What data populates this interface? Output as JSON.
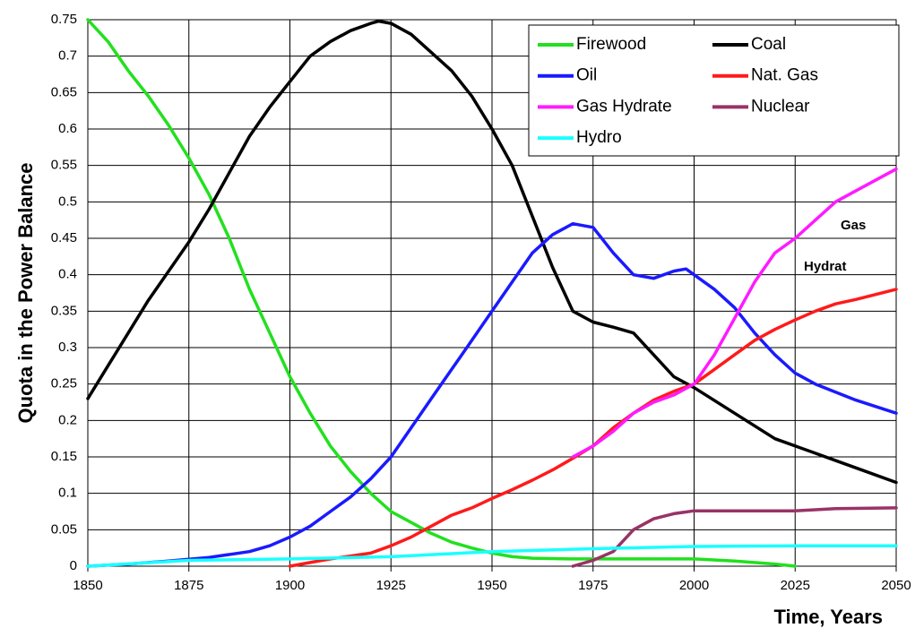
{
  "chart_data": {
    "type": "line",
    "xlabel": "Time, Years",
    "ylabel": "Quota in the Power Balance",
    "xlim": [
      1850,
      2050
    ],
    "xticks": [
      1850,
      1875,
      1900,
      1925,
      1950,
      1975,
      2000,
      2025,
      2050
    ],
    "ylim": [
      0,
      0.75
    ],
    "yticks": [
      0,
      0.05,
      0.1,
      0.15,
      0.2,
      0.25,
      0.3,
      0.35,
      0.4,
      0.45,
      0.5,
      0.55,
      0.6,
      0.65,
      0.7,
      0.75
    ],
    "grid": true,
    "legend": "upper right",
    "annotations": [
      "Gas",
      "Hydrat"
    ],
    "series": [
      {
        "name": "Firewood",
        "color": "#22e01e",
        "x": [
          1850,
          1855,
          1860,
          1865,
          1870,
          1875,
          1880,
          1885,
          1890,
          1895,
          1900,
          1905,
          1910,
          1915,
          1920,
          1925,
          1930,
          1935,
          1940,
          1945,
          1950,
          1955,
          1960,
          1970,
          1980,
          1990,
          2000,
          2010,
          2020,
          2025
        ],
        "values": [
          0.75,
          0.72,
          0.68,
          0.645,
          0.605,
          0.56,
          0.51,
          0.45,
          0.38,
          0.32,
          0.26,
          0.21,
          0.165,
          0.13,
          0.1,
          0.075,
          0.06,
          0.045,
          0.033,
          0.025,
          0.018,
          0.013,
          0.011,
          0.01,
          0.01,
          0.01,
          0.01,
          0.007,
          0.003,
          0
        ]
      },
      {
        "name": "Coal",
        "color": "#000000",
        "x": [
          1850,
          1855,
          1860,
          1865,
          1870,
          1875,
          1880,
          1885,
          1890,
          1895,
          1900,
          1905,
          1910,
          1915,
          1920,
          1922,
          1925,
          1930,
          1935,
          1940,
          1945,
          1950,
          1955,
          1960,
          1965,
          1970,
          1975,
          1980,
          1985,
          1990,
          1995,
          2000,
          2010,
          2020,
          2030,
          2040,
          2050
        ],
        "values": [
          0.23,
          0.275,
          0.32,
          0.365,
          0.405,
          0.445,
          0.49,
          0.54,
          0.59,
          0.63,
          0.665,
          0.7,
          0.72,
          0.735,
          0.745,
          0.748,
          0.745,
          0.73,
          0.705,
          0.68,
          0.645,
          0.6,
          0.55,
          0.48,
          0.41,
          0.35,
          0.335,
          0.328,
          0.32,
          0.29,
          0.26,
          0.245,
          0.21,
          0.175,
          0.155,
          0.135,
          0.115
        ]
      },
      {
        "name": "Oil",
        "color": "#1a1aff",
        "x": [
          1850,
          1860,
          1870,
          1880,
          1890,
          1895,
          1900,
          1905,
          1910,
          1915,
          1920,
          1925,
          1930,
          1935,
          1940,
          1945,
          1950,
          1955,
          1960,
          1965,
          1970,
          1975,
          1980,
          1985,
          1990,
          1995,
          1998,
          2000,
          2005,
          2010,
          2015,
          2020,
          2025,
          2030,
          2040,
          2050
        ],
        "values": [
          0,
          0.003,
          0.007,
          0.012,
          0.02,
          0.028,
          0.04,
          0.055,
          0.075,
          0.095,
          0.12,
          0.15,
          0.19,
          0.23,
          0.27,
          0.31,
          0.35,
          0.39,
          0.43,
          0.455,
          0.47,
          0.465,
          0.43,
          0.4,
          0.395,
          0.405,
          0.408,
          0.4,
          0.38,
          0.355,
          0.32,
          0.29,
          0.265,
          0.25,
          0.228,
          0.21
        ]
      },
      {
        "name": "Nat. Gas",
        "color": "#ff1a1a",
        "x": [
          1900,
          1905,
          1910,
          1920,
          1925,
          1930,
          1935,
          1940,
          1945,
          1950,
          1955,
          1960,
          1965,
          1970,
          1975,
          1980,
          1985,
          1990,
          1995,
          2000,
          2005,
          2010,
          2015,
          2020,
          2025,
          2030,
          2035,
          2040,
          2050
        ],
        "values": [
          0,
          0.005,
          0.01,
          0.018,
          0.028,
          0.04,
          0.055,
          0.07,
          0.08,
          0.093,
          0.105,
          0.118,
          0.132,
          0.148,
          0.165,
          0.19,
          0.21,
          0.228,
          0.24,
          0.25,
          0.27,
          0.29,
          0.31,
          0.325,
          0.338,
          0.35,
          0.36,
          0.366,
          0.38
        ]
      },
      {
        "name": "Gas Hydrate",
        "color": "#ff1aff",
        "x": [
          1970,
          1975,
          1980,
          1985,
          1990,
          1995,
          2000,
          2005,
          2010,
          2015,
          2020,
          2025,
          2030,
          2035,
          2040,
          2050
        ],
        "values": [
          0.15,
          0.165,
          0.185,
          0.21,
          0.225,
          0.235,
          0.25,
          0.29,
          0.34,
          0.39,
          0.43,
          0.45,
          0.475,
          0.5,
          0.515,
          0.545
        ]
      },
      {
        "name": "Nuclear",
        "color": "#993366",
        "x": [
          1970,
          1975,
          1980,
          1985,
          1990,
          1995,
          2000,
          2010,
          2025,
          2035,
          2050
        ],
        "values": [
          0,
          0.008,
          0.02,
          0.05,
          0.065,
          0.072,
          0.076,
          0.076,
          0.076,
          0.079,
          0.08
        ]
      },
      {
        "name": "Hydro",
        "color": "#1affff",
        "x": [
          1850,
          1875,
          1900,
          1925,
          1950,
          1975,
          2000,
          2025,
          2050
        ],
        "values": [
          0,
          0.008,
          0.01,
          0.013,
          0.02,
          0.024,
          0.027,
          0.028,
          0.028
        ]
      }
    ]
  }
}
